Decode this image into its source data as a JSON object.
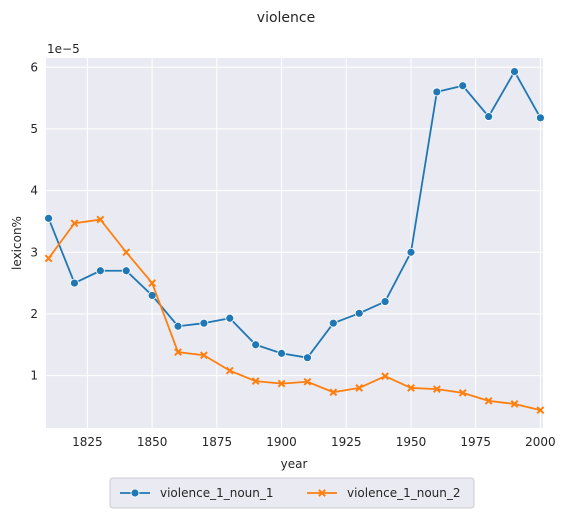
{
  "chart_data": {
    "type": "line",
    "title": "violence",
    "xlabel": "year",
    "ylabel": "lexicon%",
    "y_offset_label": "1e−5",
    "x": [
      1810,
      1820,
      1830,
      1840,
      1850,
      1860,
      1870,
      1880,
      1890,
      1900,
      1910,
      1920,
      1930,
      1940,
      1950,
      1960,
      1970,
      1980,
      1990,
      2000
    ],
    "series": [
      {
        "name": "violence_1_noun_1",
        "color": "#1f77b4",
        "marker": "circle",
        "values": [
          3.55,
          2.5,
          2.7,
          2.7,
          2.3,
          1.8,
          1.85,
          1.93,
          1.5,
          1.36,
          1.29,
          1.85,
          2.01,
          2.2,
          3.0,
          5.6,
          5.7,
          5.2,
          5.93,
          5.18
        ]
      },
      {
        "name": "violence_1_noun_2",
        "color": "#ff7f0e",
        "marker": "x",
        "values": [
          2.9,
          3.47,
          3.53,
          3.0,
          2.5,
          1.38,
          1.33,
          1.08,
          0.91,
          0.87,
          0.9,
          0.73,
          0.8,
          0.99,
          0.8,
          0.78,
          0.72,
          0.59,
          0.54,
          0.44
        ]
      }
    ],
    "x_ticks": [
      1825,
      1850,
      1875,
      1900,
      1925,
      1950,
      1975,
      2000
    ],
    "y_ticks": [
      1,
      2,
      3,
      4,
      5,
      6
    ],
    "xlim": [
      1809,
      2001
    ],
    "ylim": [
      0.15,
      6.15
    ],
    "grid": true,
    "background": "#eaeaf2",
    "legend_position": "bottom-center"
  }
}
